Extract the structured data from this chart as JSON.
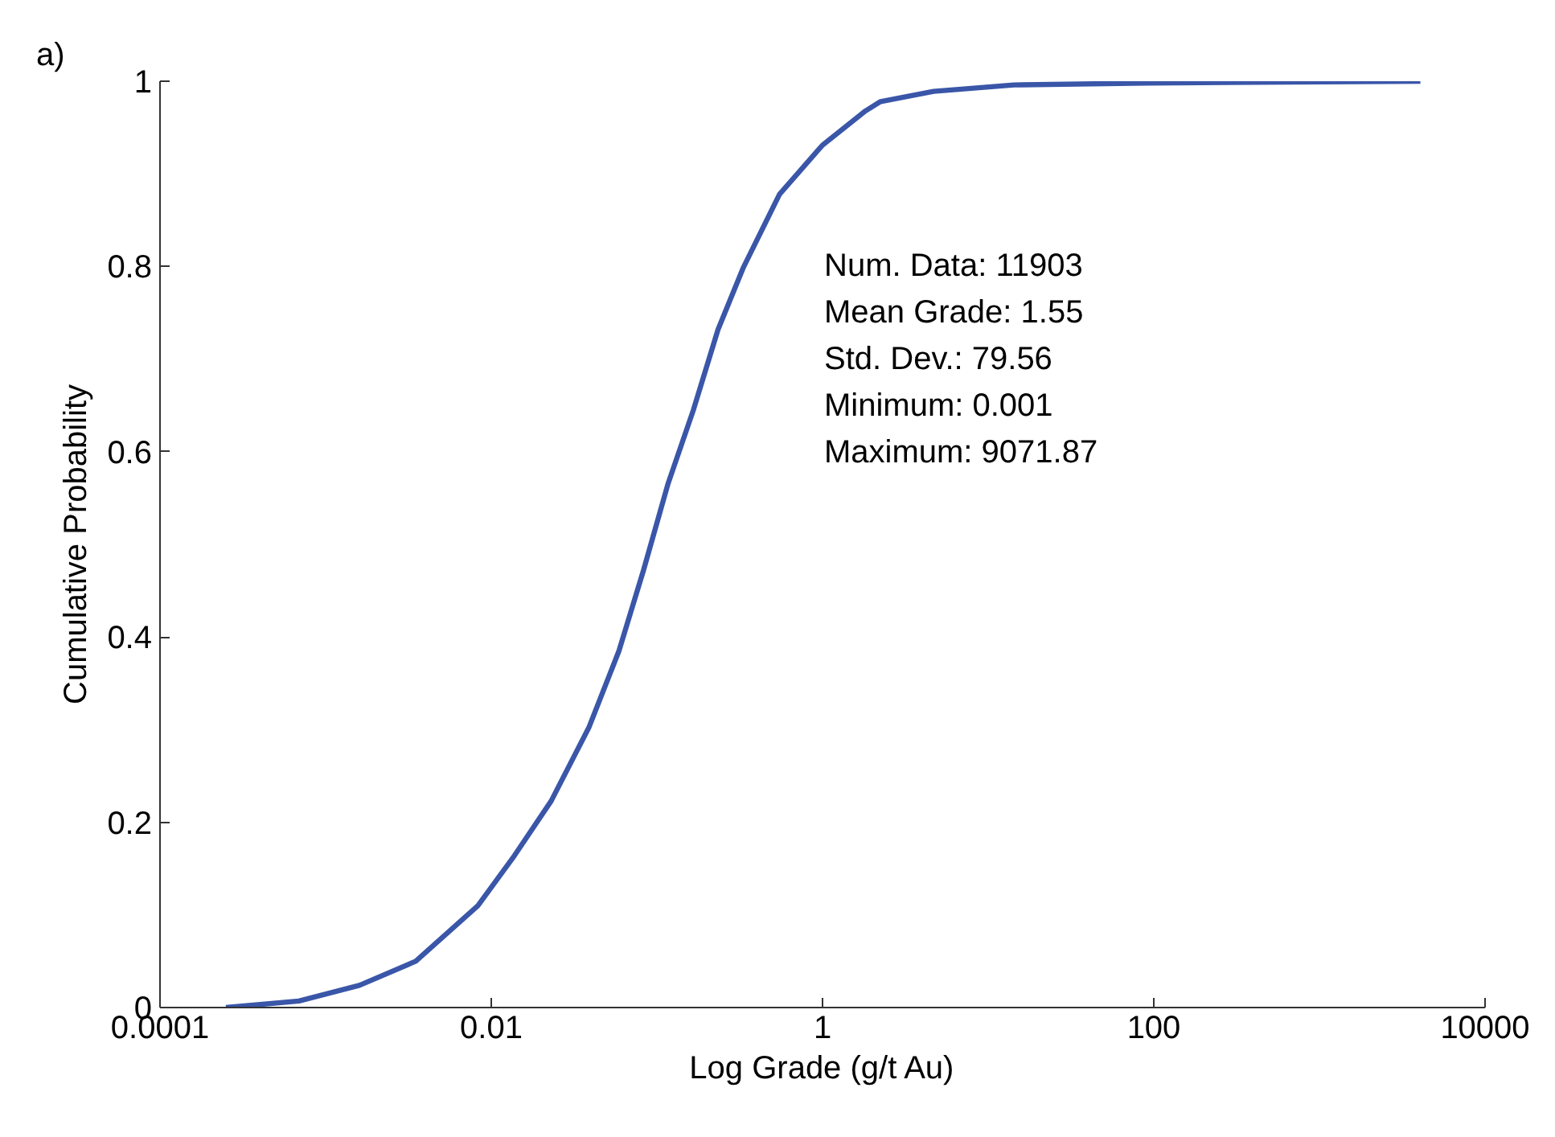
{
  "chart_data": {
    "type": "line",
    "xlabel": "Log Grade (g/t Au)",
    "ylabel": "Cumulative Probability",
    "log": "x",
    "grid": false,
    "marker": "none",
    "line_style": "solid",
    "xlim": [
      0.0001,
      10000
    ],
    "xticks": [
      0.0001,
      0.01,
      1,
      100,
      10000
    ],
    "ylim": [
      0,
      1
    ],
    "yticks": [
      0,
      0.2,
      0.4,
      0.6,
      0.8,
      1
    ],
    "annotations": [
      "a)",
      "Num. Data:  11903",
      "Mean Grade:  1.55",
      "Std. Dev.:  79.56",
      "Minimum:  0.001",
      "Maximum:  9071.87"
    ],
    "series": [
      {
        "color": "#3a56a8",
        "x": [
          0.00025,
          0.00069,
          0.0016,
          0.0035,
          0.0083,
          0.0138,
          0.023,
          0.039,
          0.059,
          0.083,
          0.117,
          0.166,
          0.234,
          0.331,
          0.55,
          1.0,
          1.82,
          2.24,
          4.68,
          14.3,
          91,
          4070
        ],
        "values": [
          0,
          0.007,
          0.024,
          0.05,
          0.11,
          0.164,
          0.223,
          0.303,
          0.385,
          0.472,
          0.566,
          0.645,
          0.732,
          0.798,
          0.878,
          0.931,
          0.968,
          0.978,
          0.989,
          0.996,
          0.998,
          1
        ]
      }
    ]
  }
}
